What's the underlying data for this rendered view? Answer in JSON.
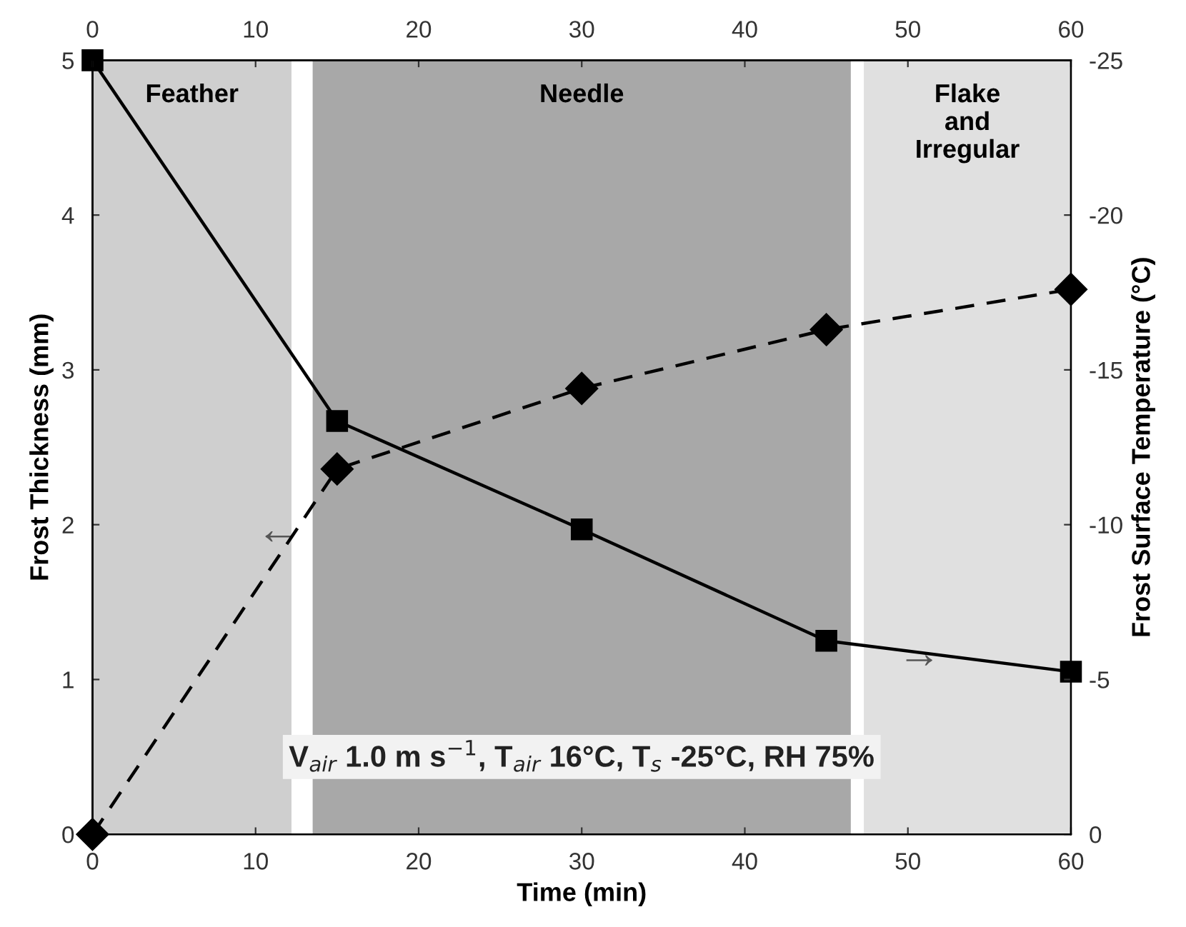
{
  "chart_data": {
    "type": "line",
    "xlabel": "Time (min)",
    "ylabel": "Frost Thickness (mm)",
    "y2label": "Frost Surface Temperature (°C)",
    "x": [
      0,
      15,
      30,
      45,
      60
    ],
    "series": [
      {
        "color": "#000000",
        "values": [
          5,
          2.67,
          1.97,
          1.25,
          1.05
        ],
        "marker": "square",
        "line_style": "solid"
      },
      {
        "color": "#000000",
        "values": [
          0,
          -11.8,
          -14.4,
          -16.3,
          -17.6
        ],
        "marker": "diamond",
        "line_style": "dashed",
        "axis": "y2"
      }
    ],
    "xlim": [
      0,
      60
    ],
    "xticks": [
      0,
      10,
      20,
      30,
      40,
      50,
      60
    ],
    "x2lim": [
      0,
      60
    ],
    "x2ticks": [
      0,
      10,
      20,
      30,
      40,
      50,
      60
    ],
    "ylim": [
      0,
      5
    ],
    "yticks": [
      0,
      1,
      2,
      3,
      4,
      5
    ],
    "y2lim": [
      0,
      -25
    ],
    "y2ticks": [
      0,
      -5,
      -10,
      -15,
      -20,
      -25
    ],
    "bands": [
      {
        "axis": "x",
        "from": 0,
        "to": 12.2,
        "label": "Feather",
        "color": "#cfcfcf"
      },
      {
        "axis": "x",
        "from": 13.5,
        "to": 46.5,
        "label": "Needle",
        "color": "#a8a8a8"
      },
      {
        "axis": "x",
        "from": 47.3,
        "to": 60,
        "label": "Flake\nand\nIrregular",
        "color": "#e0e0e0"
      }
    ],
    "annotations": [
      "←",
      "→",
      "V$_{air}$ 1.0 m s$^{−1}$, T$_{air}$ 16°C, T$_{s}$ -25°C, RH 75%"
    ],
    "grid": false,
    "legend": false
  }
}
